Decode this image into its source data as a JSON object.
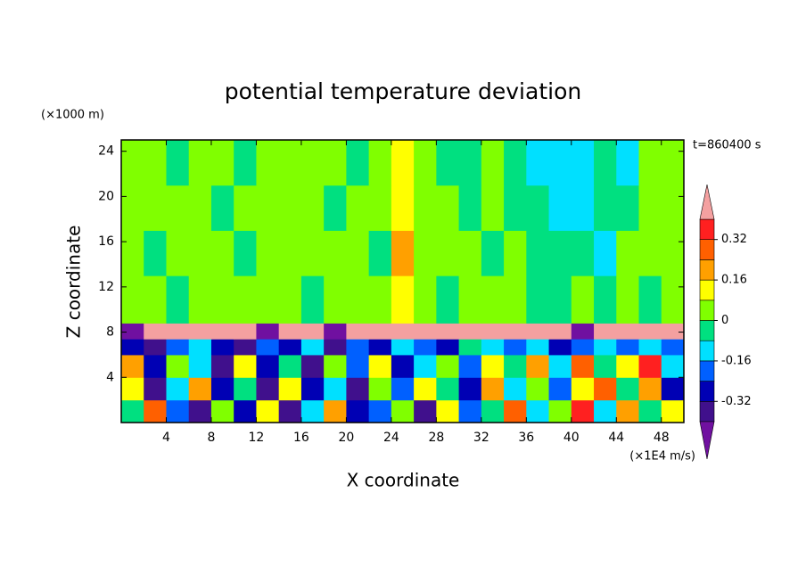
{
  "chart_data": {
    "type": "contour",
    "title": "potential temperature deviation",
    "x_label": "X coordinate",
    "y_label": "Z coordinate",
    "x_unit": "(×1E4 m/s)",
    "y_unit": "(×1000 m)",
    "time_label": "t=860400 s",
    "xlim": [
      0,
      50
    ],
    "ylim": [
      0,
      25
    ],
    "xticks": [
      4,
      8,
      12,
      16,
      20,
      24,
      28,
      32,
      36,
      40,
      44,
      48
    ],
    "yticks": [
      4,
      8,
      12,
      16,
      20,
      24
    ],
    "x_edges": [
      0,
      2,
      4,
      6,
      8,
      10,
      12,
      14,
      16,
      18,
      20,
      22,
      24,
      26,
      28,
      30,
      32,
      34,
      36,
      38,
      40,
      42,
      44,
      46,
      48,
      50
    ],
    "y_edges": [
      0,
      2,
      4,
      6,
      7.4,
      8.8,
      13,
      17,
      21,
      25
    ],
    "z": [
      [
        -0.04,
        0.28,
        -0.2,
        -0.36,
        0.04,
        -0.28,
        0.12,
        -0.36,
        -0.12,
        0.2,
        -0.28,
        -0.2,
        0.04,
        -0.36,
        0.12,
        -0.2,
        -0.04,
        0.28,
        -0.12,
        0.04,
        0.36,
        -0.12,
        0.2,
        -0.04,
        0.12
      ],
      [
        0.12,
        -0.36,
        -0.12,
        0.2,
        -0.28,
        -0.04,
        -0.36,
        0.12,
        -0.28,
        -0.12,
        -0.36,
        0.04,
        -0.2,
        0.12,
        -0.04,
        -0.28,
        0.2,
        -0.12,
        0.04,
        -0.2,
        0.12,
        0.28,
        -0.04,
        0.2,
        -0.28
      ],
      [
        0.2,
        -0.28,
        0.04,
        -0.12,
        -0.36,
        0.12,
        -0.28,
        -0.04,
        -0.36,
        0.04,
        -0.2,
        0.12,
        -0.28,
        -0.12,
        0.04,
        -0.2,
        0.12,
        -0.04,
        0.2,
        -0.12,
        0.28,
        -0.04,
        0.12,
        0.36,
        -0.12
      ],
      [
        -0.28,
        -0.36,
        -0.2,
        -0.12,
        -0.28,
        -0.36,
        -0.2,
        -0.28,
        -0.12,
        -0.36,
        -0.2,
        -0.28,
        -0.12,
        -0.2,
        -0.28,
        -0.04,
        -0.12,
        -0.2,
        -0.12,
        -0.28,
        -0.2,
        -0.12,
        -0.2,
        -0.12,
        -0.2
      ],
      [
        -0.45,
        0.45,
        0.45,
        0.45,
        0.45,
        0.45,
        -0.45,
        0.45,
        0.45,
        -0.45,
        0.45,
        0.45,
        0.45,
        0.45,
        0.45,
        0.45,
        0.45,
        0.45,
        0.45,
        0.45,
        -0.45,
        0.45,
        0.45,
        0.45,
        0.45
      ],
      [
        0.04,
        0.04,
        -0.04,
        0.04,
        0.04,
        0.04,
        0.04,
        0.04,
        -0.04,
        0.04,
        0.04,
        0.04,
        0.12,
        0.04,
        -0.04,
        0.04,
        0.04,
        0.04,
        -0.04,
        -0.04,
        0.04,
        -0.04,
        0.04,
        -0.04,
        0.04
      ],
      [
        0.04,
        -0.04,
        0.04,
        0.04,
        0.04,
        -0.04,
        0.04,
        0.04,
        0.04,
        0.04,
        0.04,
        -0.04,
        0.2,
        0.04,
        0.04,
        0.04,
        -0.04,
        0.04,
        -0.04,
        -0.04,
        -0.04,
        -0.12,
        0.04,
        0.04,
        0.04
      ],
      [
        0.04,
        0.04,
        0.04,
        0.04,
        -0.04,
        0.04,
        0.04,
        0.04,
        0.04,
        -0.04,
        0.04,
        0.04,
        0.12,
        0.04,
        0.04,
        -0.04,
        0.04,
        -0.04,
        -0.04,
        -0.12,
        -0.12,
        -0.04,
        -0.04,
        0.04,
        0.04
      ],
      [
        0.04,
        0.04,
        -0.04,
        0.04,
        0.04,
        -0.04,
        0.04,
        0.04,
        0.04,
        0.04,
        -0.04,
        0.04,
        0.12,
        0.04,
        -0.04,
        -0.04,
        0.04,
        -0.04,
        -0.12,
        -0.12,
        -0.12,
        -0.04,
        -0.12,
        0.04,
        0.04
      ]
    ],
    "levels": [
      -0.4,
      -0.32,
      -0.24,
      -0.16,
      -0.08,
      0,
      0.08,
      0.16,
      0.24,
      0.32,
      0.4
    ],
    "colors": [
      "#7010a0",
      "#40108c",
      "#0000b4",
      "#0060ff",
      "#00e0ff",
      "#00e080",
      "#80ff00",
      "#ffff00",
      "#ffa000",
      "#ff6000",
      "#ff2020",
      "#f4a0a0"
    ],
    "colorbar_ticks": [
      -0.32,
      -0.16,
      0,
      0.16,
      0.32
    ]
  }
}
